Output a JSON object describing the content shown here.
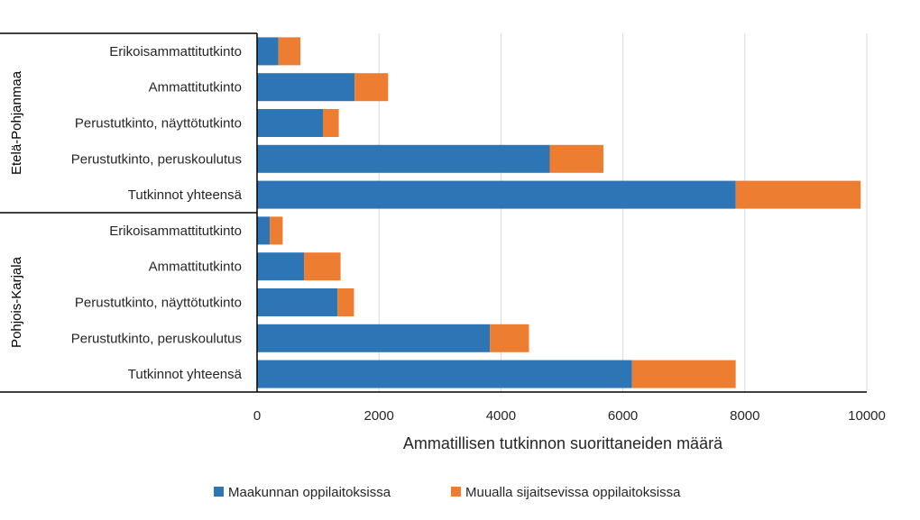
{
  "chart_data": {
    "type": "bar",
    "orientation": "horizontal",
    "stacked": true,
    "title": "",
    "xlabel": "Ammatillisen tutkinnon suorittaneiden määrä",
    "ylabel": "",
    "xlim": [
      0,
      10000
    ],
    "xticks": [
      "0",
      "2000",
      "4000",
      "6000",
      "8000",
      "10000"
    ],
    "grid": true,
    "legend_position": "bottom",
    "groups": [
      {
        "name": "Etelä-Pohjanmaa",
        "categories": [
          "Erikoisammattitutkinto",
          "Ammattitutkinto",
          "Perustutkinto, näyttötutkinto",
          "Perustutkinto, peruskoulutus",
          "Tutkinnot yhteensä"
        ]
      },
      {
        "name": "Pohjois-Karjala",
        "categories": [
          "Erikoisammattitutkinto",
          "Ammattitutkinto",
          "Perustutkinto, näyttötutkinto",
          "Perustutkinto, peruskoulutus",
          "Tutkinnot yhteensä"
        ]
      }
    ],
    "series": [
      {
        "name": "Maakunnan oppilaitoksissa",
        "color": "#2E75B6",
        "values": [
          350,
          1600,
          1080,
          4800,
          7850,
          210,
          770,
          1320,
          3820,
          6150
        ]
      },
      {
        "name": "Muualla sijaitsevissa oppilaitoksissa",
        "color": "#ED7D31",
        "values": [
          360,
          550,
          260,
          880,
          2050,
          210,
          600,
          270,
          640,
          1700
        ]
      }
    ]
  }
}
